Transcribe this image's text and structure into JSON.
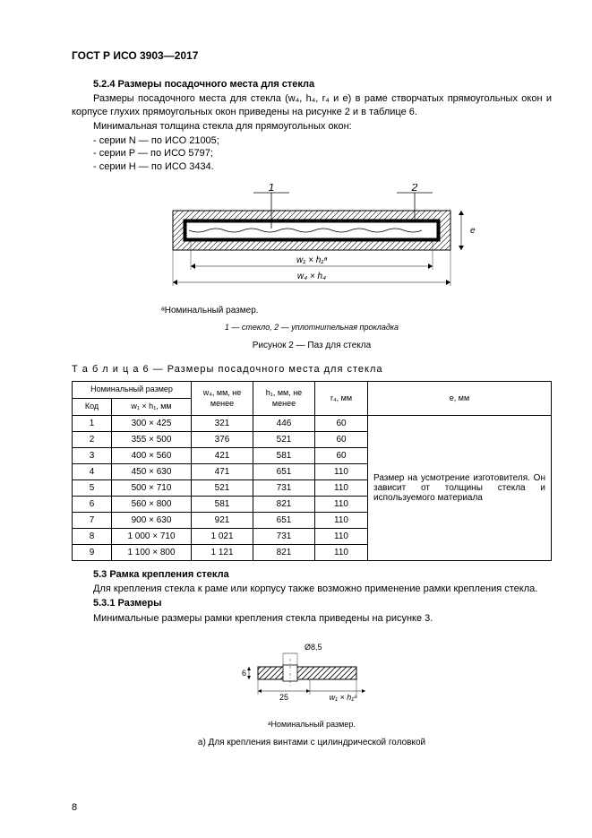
{
  "header": {
    "doc_id": "ГОСТ Р ИСО 3903—2017"
  },
  "s524": {
    "num_title": "5.2.4 Размеры посадочного места для стекла",
    "p1": "Размеры посадочного места для стекла (w₄, h₄, r₄ и e) в раме створчатых прямоугольных окон и корпусе глухих прямоугольных окон приведены на рисунке 2 и в таблице 6.",
    "p2": "Минимальная толщина стекла для прямоугольных окон:",
    "items": [
      "- серии N — по ИСО 21005;",
      "- серии P — по ИСО 5797;",
      "- серии H — по ИСО 3434."
    ]
  },
  "fig2": {
    "label1": "1",
    "label2": "2",
    "dim_inner": "w₁ × h₁ᵃ",
    "dim_outer": "w₄ × h₄",
    "e_label": "e",
    "footnote": "ᵃНоминальный размер.",
    "legend": "1 — стекло, 2 — уплотнительная прокладка",
    "caption": "Рисунок 2 — Паз для стекла"
  },
  "table6": {
    "title": "Т а б л и ц а    6 — Размеры посадочного места для стекла",
    "header_nom": "Номинальный размер",
    "header_kod": "Код",
    "header_wh": "w₁ × h₁, мм",
    "header_w4": "w₄, мм,\nне менее",
    "header_h1": "h₁, мм,\nне менее",
    "header_r4": "r₄, мм",
    "header_e": "e, мм",
    "rows": [
      {
        "k": "1",
        "wh": "300 × 425",
        "w4": "321",
        "h1": "446",
        "r4": "60"
      },
      {
        "k": "2",
        "wh": "355 × 500",
        "w4": "376",
        "h1": "521",
        "r4": "60"
      },
      {
        "k": "3",
        "wh": "400 × 560",
        "w4": "421",
        "h1": "581",
        "r4": "60"
      },
      {
        "k": "4",
        "wh": "450 × 630",
        "w4": "471",
        "h1": "651",
        "r4": "110"
      },
      {
        "k": "5",
        "wh": "500 × 710",
        "w4": "521",
        "h1": "731",
        "r4": "110"
      },
      {
        "k": "6",
        "wh": "560 × 800",
        "w4": "581",
        "h1": "821",
        "r4": "110"
      },
      {
        "k": "7",
        "wh": "900 × 630",
        "w4": "921",
        "h1": "651",
        "r4": "110"
      },
      {
        "k": "8",
        "wh": "1 000 × 710",
        "w4": "1 021",
        "h1": "731",
        "r4": "110"
      },
      {
        "k": "9",
        "wh": "1 100 × 800",
        "w4": "1 121",
        "h1": "821",
        "r4": "110"
      }
    ],
    "merged_note": "Размер на усмотрение изготовителя. Он зависит от толщины стекла и используемого материала"
  },
  "s53": {
    "title": "5.3 Рамка крепления стекла",
    "p1": "Для крепления стекла к раме или корпусу также возможно применение рамки крепления стекла.",
    "sub_title": "5.3.1 Размеры",
    "p2": "Минимальные размеры рамки крепления стекла приведены на рисунке 3."
  },
  "fig3": {
    "dim_top": "Ø8,5",
    "dim_side": "6",
    "dim_bottom": "25",
    "dim_right": "w₁ × h₁ᵃ",
    "footnote": "ᵃНоминальный размер.",
    "caption": "a) Для крепления винтами с цилиндрической головкой"
  },
  "page_number": "8"
}
